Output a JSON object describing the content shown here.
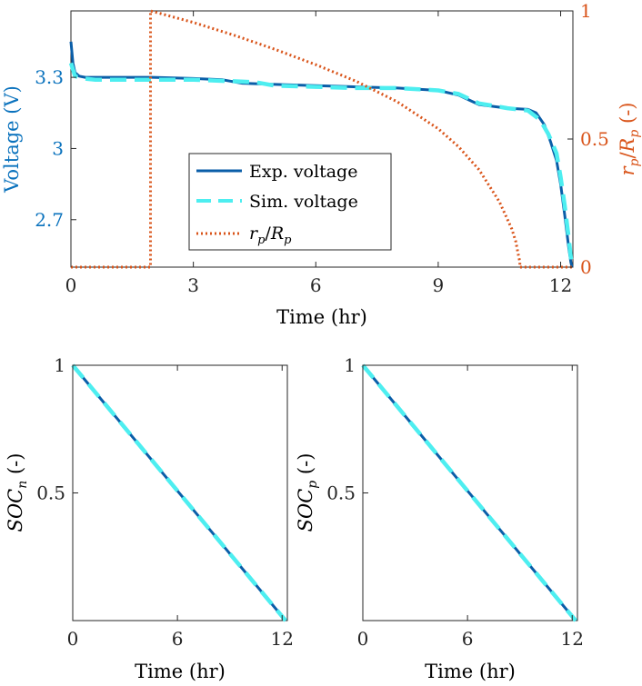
{
  "colors": {
    "exp": "#0a5ea8",
    "sim": "#4deef0",
    "rp": "#d9541a",
    "left_axis": "#0a72bd",
    "right_axis": "#d9541a",
    "axis": "#262626"
  },
  "chart_data": [
    {
      "type": "line",
      "xlabel": "Time (hr)",
      "ylabel": "Voltage (V)",
      "ylabel_right": "r_p/R_p (-)",
      "xlim": [
        0,
        12.3
      ],
      "ylim": [
        2.5,
        3.58
      ],
      "ylim_right": [
        0,
        1
      ],
      "xticks": [
        0,
        3,
        6,
        9,
        12
      ],
      "yticks": [
        2.7,
        3,
        3.3
      ],
      "yticks_right": [
        0,
        0.5,
        1
      ],
      "x_ticklabels": [
        "0",
        "3",
        "6",
        "9",
        "12"
      ],
      "y_ticklabels": [
        "2.7",
        "3",
        "3.3"
      ],
      "y_right_ticklabels": [
        "0",
        "0.5",
        "1"
      ],
      "grid": false,
      "legend": "center",
      "legend_labels": [
        "Exp. voltage",
        "Sim. voltage"
      ],
      "legend_math": {
        "r": "r",
        "r_sub": "p",
        "R": "R",
        "R_sub": "p"
      },
      "series": [
        {
          "name": "Exp. voltage",
          "axis": "left",
          "style": "solid",
          "x": [
            0,
            0.05,
            0.1,
            0.2,
            0.35,
            0.6,
            1,
            2,
            3,
            3.7,
            4.2,
            5,
            6,
            7,
            8,
            9,
            9.5,
            10,
            10.7,
            11.2,
            11.4,
            11.6,
            11.75,
            11.9,
            12.0,
            12.1,
            12.2,
            12.25,
            12.28
          ],
          "y": [
            3.45,
            3.36,
            3.32,
            3.305,
            3.3,
            3.3,
            3.3,
            3.3,
            3.295,
            3.29,
            3.275,
            3.27,
            3.265,
            3.26,
            3.255,
            3.245,
            3.225,
            3.185,
            3.17,
            3.165,
            3.15,
            3.1,
            3.03,
            2.95,
            2.85,
            2.72,
            2.58,
            2.52,
            2.5
          ]
        },
        {
          "name": "Sim. voltage",
          "axis": "left",
          "style": "dashed",
          "x": [
            0,
            0.1,
            0.3,
            0.6,
            1,
            2,
            3,
            3.7,
            4.5,
            5,
            6,
            7,
            8,
            9,
            9.5,
            10,
            10.7,
            11.2,
            11.5,
            11.7,
            11.9,
            12.0,
            12.1,
            12.2,
            12.25,
            12.28
          ],
          "y": [
            3.36,
            3.305,
            3.295,
            3.29,
            3.29,
            3.29,
            3.29,
            3.285,
            3.28,
            3.265,
            3.26,
            3.255,
            3.255,
            3.245,
            3.23,
            3.19,
            3.17,
            3.16,
            3.12,
            3.06,
            2.98,
            2.88,
            2.76,
            2.62,
            2.54,
            2.5
          ]
        },
        {
          "name": "r_p/R_p",
          "axis": "right",
          "style": "dotted",
          "x": [
            0,
            1.95,
            1.95,
            2.3,
            3,
            4,
            5,
            6,
            7,
            8,
            9,
            9.5,
            10,
            10.5,
            10.8,
            10.9,
            10.96,
            11.0,
            11.0,
            12.3
          ],
          "y": [
            0,
            0,
            1,
            0.985,
            0.955,
            0.905,
            0.85,
            0.79,
            0.725,
            0.645,
            0.54,
            0.47,
            0.38,
            0.255,
            0.15,
            0.1,
            0.05,
            0.02,
            0,
            0
          ]
        }
      ]
    },
    {
      "type": "line",
      "xlabel": "Time (hr)",
      "ylabel": "SOC_n (-)",
      "xlim": [
        0,
        12.3
      ],
      "ylim": [
        0,
        1
      ],
      "xticks": [
        0,
        6,
        12
      ],
      "yticks": [
        0.5,
        1
      ],
      "x_ticklabels": [
        "0",
        "6",
        "12"
      ],
      "y_ticklabels": [
        "0.5",
        "1"
      ],
      "grid": false,
      "series": [
        {
          "style": "solid",
          "x": [
            0,
            12.2
          ],
          "y": [
            1,
            0
          ]
        },
        {
          "style": "dashed",
          "x": [
            0,
            12.2
          ],
          "y": [
            1,
            0
          ]
        }
      ]
    },
    {
      "type": "line",
      "xlabel": "Time (hr)",
      "ylabel": "SOC_p (-)",
      "xlim": [
        0,
        12.3
      ],
      "ylim": [
        0,
        1
      ],
      "xticks": [
        0,
        6,
        12
      ],
      "yticks": [
        0.5,
        1
      ],
      "x_ticklabels": [
        "0",
        "6",
        "12"
      ],
      "y_ticklabels": [
        "0.5",
        "1"
      ],
      "grid": false,
      "series": [
        {
          "style": "solid",
          "x": [
            0,
            12.2
          ],
          "y": [
            1,
            0
          ]
        },
        {
          "style": "dashed",
          "x": [
            0,
            12.2
          ],
          "y": [
            1,
            0
          ]
        }
      ]
    }
  ],
  "ylabel_parts": {
    "top_left": "Voltage (V)",
    "top_right_r": "r",
    "top_right_r_sub": "p",
    "top_right_slash": "/",
    "top_right_R": "R",
    "top_right_R_sub": "p",
    "top_right_unit": " (-)",
    "soc": "SOC",
    "soc_n_sub": "n",
    "soc_p_sub": "p",
    "unit": " (-)"
  }
}
